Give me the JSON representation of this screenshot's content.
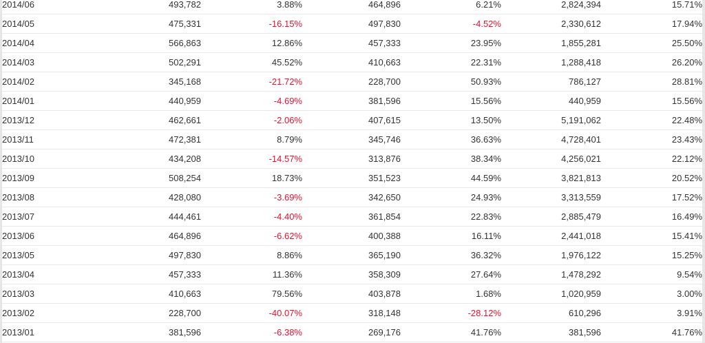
{
  "table": {
    "rows": [
      [
        "2014/06",
        "493,782",
        "3.88%",
        "464,896",
        "6.21%",
        "2,824,394",
        "15.71%"
      ],
      [
        "2014/05",
        "475,331",
        "-16.15%",
        "497,830",
        "-4.52%",
        "2,330,612",
        "17.94%"
      ],
      [
        "2014/04",
        "566,863",
        "12.86%",
        "457,333",
        "23.95%",
        "1,855,281",
        "25.50%"
      ],
      [
        "2014/03",
        "502,291",
        "45.52%",
        "410,663",
        "22.31%",
        "1,288,418",
        "26.20%"
      ],
      [
        "2014/02",
        "345,168",
        "-21.72%",
        "228,700",
        "50.93%",
        "786,127",
        "28.81%"
      ],
      [
        "2014/01",
        "440,959",
        "-4.69%",
        "381,596",
        "15.56%",
        "440,959",
        "15.56%"
      ],
      [
        "2013/12",
        "462,661",
        "-2.06%",
        "407,615",
        "13.50%",
        "5,191,062",
        "22.48%"
      ],
      [
        "2013/11",
        "472,381",
        "8.79%",
        "345,746",
        "36.63%",
        "4,728,401",
        "23.43%"
      ],
      [
        "2013/10",
        "434,208",
        "-14.57%",
        "313,876",
        "38.34%",
        "4,256,021",
        "22.12%"
      ],
      [
        "2013/09",
        "508,254",
        "18.73%",
        "351,523",
        "44.59%",
        "3,821,813",
        "20.52%"
      ],
      [
        "2013/08",
        "428,080",
        "-3.69%",
        "342,650",
        "24.93%",
        "3,313,559",
        "17.52%"
      ],
      [
        "2013/07",
        "444,461",
        "-4.40%",
        "361,854",
        "22.83%",
        "2,885,479",
        "16.49%"
      ],
      [
        "2013/06",
        "464,896",
        "-6.62%",
        "400,388",
        "16.11%",
        "2,441,018",
        "15.41%"
      ],
      [
        "2013/05",
        "497,830",
        "8.86%",
        "365,190",
        "36.32%",
        "1,976,122",
        "15.25%"
      ],
      [
        "2013/04",
        "457,333",
        "11.36%",
        "358,309",
        "27.64%",
        "1,478,292",
        "9.54%"
      ],
      [
        "2013/03",
        "410,663",
        "79.56%",
        "403,878",
        "1.68%",
        "1,020,959",
        "3.00%"
      ],
      [
        "2013/02",
        "228,700",
        "-40.07%",
        "318,148",
        "-28.12%",
        "610,296",
        "3.91%"
      ],
      [
        "2013/01",
        "381,596",
        "-6.38%",
        "269,176",
        "41.76%",
        "381,596",
        "41.76%"
      ]
    ]
  },
  "colors": {
    "text": "#333333",
    "negative": "#e8112d",
    "row_border": "#e8e8e8"
  }
}
